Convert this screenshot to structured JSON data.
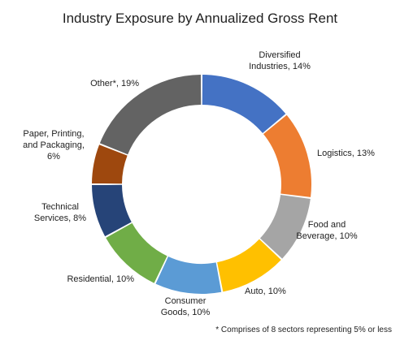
{
  "chart_data": {
    "type": "pie",
    "title": "Industry Exposure by Annualized Gross Rent",
    "legend": "none",
    "series": [
      {
        "name": "",
        "values": [
          14,
          13,
          10,
          10,
          10,
          10,
          8,
          6,
          19
        ]
      }
    ],
    "categories": [
      "Diversified Industries",
      "Logistics",
      "Food and Beverage",
      "Auto",
      "Consumer Goods",
      "Residential",
      "Technical Services",
      "Paper, Printing, and Packaging",
      "Other*"
    ],
    "slices": [
      {
        "label_lines": [
          "Diversified",
          "Industries, 14%"
        ],
        "value": 14,
        "color": "#4472C4"
      },
      {
        "label_lines": [
          "Logistics, 13%"
        ],
        "value": 13,
        "color": "#ED7D31"
      },
      {
        "label_lines": [
          "Food and",
          "Beverage, 10%"
        ],
        "value": 10,
        "color": "#A5A5A5"
      },
      {
        "label_lines": [
          "Auto, 10%"
        ],
        "value": 10,
        "color": "#FFC000"
      },
      {
        "label_lines": [
          "Consumer",
          "Goods, 10%"
        ],
        "value": 10,
        "color": "#5B9BD5"
      },
      {
        "label_lines": [
          "Residential, 10%"
        ],
        "value": 10,
        "color": "#70AD47"
      },
      {
        "label_lines": [
          "Technical",
          "Services, 8%"
        ],
        "value": 8,
        "color": "#264478"
      },
      {
        "label_lines": [
          "Paper, Printing,",
          "and Packaging,",
          "6%"
        ],
        "value": 6,
        "color": "#9E480E"
      },
      {
        "label_lines": [
          "Other*, 19%"
        ],
        "value": 19,
        "color": "#636363"
      }
    ],
    "footnote": "* Comprises of 8 sectors representing 5% or less"
  }
}
